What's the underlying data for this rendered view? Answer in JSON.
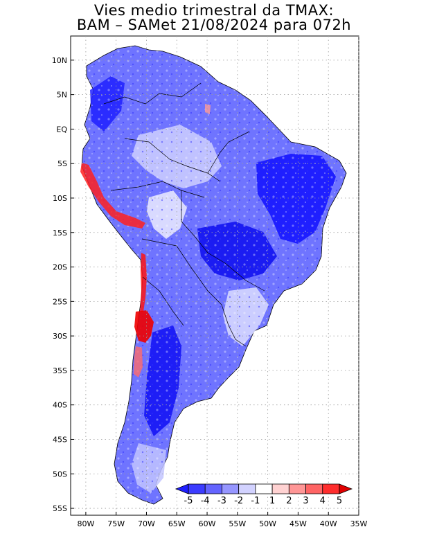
{
  "title": {
    "line1": "Vies medio trimestral da TMAX:",
    "line2": "BAM – SAMet 21/08/2024  para 072h"
  },
  "axes": {
    "lat_ticks": [
      "10N",
      "5N",
      "EQ",
      "5S",
      "10S",
      "15S",
      "20S",
      "25S",
      "30S",
      "35S",
      "40S",
      "45S",
      "50S",
      "55S"
    ],
    "lon_ticks": [
      "80W",
      "75W",
      "70W",
      "65W",
      "60W",
      "55W",
      "50W",
      "45W",
      "40W",
      "35W"
    ],
    "lat_range": [
      -56,
      13.5
    ],
    "lon_range": [
      -82.5,
      -35
    ],
    "grid": "dotted"
  },
  "colorbar": {
    "labels": [
      "-5",
      "-4",
      "-3",
      "-2",
      "-1",
      "1",
      "2",
      "3",
      "4",
      "5"
    ],
    "colors": [
      "#1f1fff",
      "#3c3cff",
      "#6464ff",
      "#9696ff",
      "#d2d2ff",
      "#ffffff",
      "#ffd2d2",
      "#ff9696",
      "#ff6464",
      "#ff2d2d",
      "#e00000"
    ]
  },
  "map": {
    "land_color": "#7a80ff",
    "dominant_bias": "negative (blue) over most of the continent; positive (red) along the Andes"
  }
}
